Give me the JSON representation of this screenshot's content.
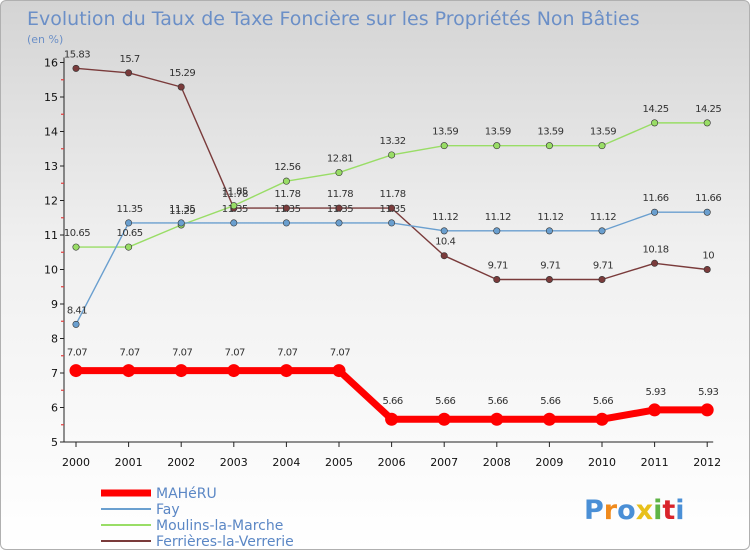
{
  "chart_data": {
    "type": "line",
    "title": "Evolution du Taux de Taxe Foncière sur les Propriétés Non Bâties",
    "unit_label": "(en %)",
    "xlabel": "",
    "ylabel": "",
    "ylim": [
      5,
      16
    ],
    "yticks": [
      5,
      6,
      7,
      8,
      9,
      10,
      11,
      12,
      13,
      14,
      15,
      16
    ],
    "categories": [
      "2000",
      "2001",
      "2002",
      "2003",
      "2004",
      "2005",
      "2006",
      "2007",
      "2008",
      "2009",
      "2010",
      "2011",
      "2012"
    ],
    "series": [
      {
        "name": "MAHéRU",
        "color": "#ff0000",
        "values": [
          7.07,
          7.07,
          7.07,
          7.07,
          7.07,
          7.07,
          5.66,
          5.66,
          5.66,
          5.66,
          5.66,
          5.93,
          5.93
        ],
        "labels": [
          "7.07",
          "7.07",
          "7.07",
          "7.07",
          "7.07",
          "7.07",
          "5.66",
          "5.66",
          "5.66",
          "5.66",
          "5.66",
          "5.93",
          "5.93"
        ]
      },
      {
        "name": "Fay",
        "color": "#6a9fcf",
        "values": [
          8.41,
          11.35,
          11.35,
          11.35,
          11.35,
          11.35,
          11.35,
          11.12,
          11.12,
          11.12,
          11.12,
          11.66,
          11.66
        ],
        "labels": [
          "8.41",
          "11.35",
          "11.35",
          "11.35",
          "11.35",
          "11.35",
          "11.35",
          "11.12",
          "11.12",
          "11.12",
          "11.12",
          "11.66",
          "11.66"
        ]
      },
      {
        "name": "Moulins-la-Marche",
        "color": "#99dd66",
        "values": [
          10.65,
          10.65,
          11.29,
          11.85,
          12.56,
          12.81,
          13.32,
          13.59,
          13.59,
          13.59,
          13.59,
          14.25,
          14.25
        ],
        "labels": [
          "10.65",
          "10.65",
          "11.29",
          "11.85",
          "12.56",
          "12.81",
          "13.32",
          "13.59",
          "13.59",
          "13.59",
          "13.59",
          "14.25",
          "14.25"
        ]
      },
      {
        "name": "Ferrières-la-Verrerie",
        "color": "#7a3b3b",
        "values": [
          15.83,
          15.7,
          15.29,
          11.78,
          11.78,
          11.78,
          11.78,
          10.4,
          9.71,
          9.71,
          9.71,
          10.18,
          10
        ],
        "labels": [
          "15.83",
          "15.7",
          "15.29",
          "11.78",
          "11.78",
          "11.78",
          "11.78",
          "10.4",
          "9.71",
          "9.71",
          "9.71",
          "10.18",
          "10"
        ]
      }
    ],
    "legend_position": "bottom-left"
  },
  "watermark": {
    "text": "Proxiti",
    "colors": [
      "#4a8fd6",
      "#f08a1c",
      "#4a8fd6",
      "#e8c01a",
      "#5fb446",
      "#d9242b",
      "#4a8fd6"
    ]
  }
}
